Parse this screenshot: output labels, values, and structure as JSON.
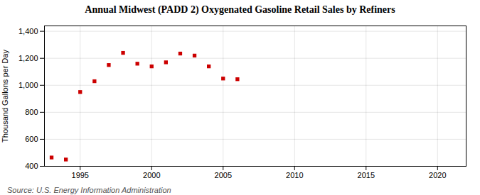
{
  "chart_data": {
    "type": "scatter",
    "title": "Annual Midwest (PADD 2) Oxygenated Gasoline Retail Sales by Refiners",
    "ylabel": "Thousand Gallons per Day",
    "source": "Source: U.S. Energy Information Administration",
    "x": [
      1993,
      1994,
      1995,
      1996,
      1997,
      1998,
      1999,
      2000,
      2001,
      2002,
      2003,
      2004,
      2005,
      2006
    ],
    "values": [
      465,
      450,
      950,
      1030,
      1150,
      1240,
      1160,
      1140,
      1170,
      1235,
      1220,
      1140,
      1050,
      1045
    ],
    "color": "#cc0000",
    "marker": "square",
    "xlim": [
      1992.5,
      2022
    ],
    "xticks": [
      1995,
      2000,
      2005,
      2010,
      2015,
      2020
    ],
    "ylim": [
      400,
      1440
    ],
    "yticks": [
      400,
      600,
      800,
      {
        "value": 1000,
        "label": "1,000"
      },
      {
        "value": 1200,
        "label": "1,200"
      },
      {
        "value": 1400,
        "label": "1,400"
      }
    ],
    "grid": true
  }
}
